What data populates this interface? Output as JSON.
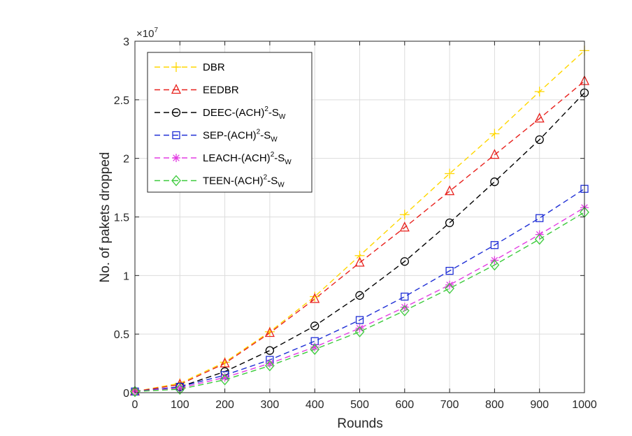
{
  "chart_data": {
    "type": "line",
    "title": "",
    "xlabel": "Rounds",
    "ylabel": "No. of pakets dropped",
    "xlim": [
      0,
      1000
    ],
    "ylim": [
      0,
      3
    ],
    "y_multiplier": {
      "base": "×10",
      "exponent": "7"
    },
    "x_ticks": [
      0,
      100,
      200,
      300,
      400,
      500,
      600,
      700,
      800,
      900,
      1000
    ],
    "y_ticks": [
      0,
      0.5,
      1,
      1.5,
      2,
      2.5,
      3
    ],
    "y_tick_labels": [
      "0",
      "0.5",
      "1",
      "1.5",
      "2",
      "2.5",
      "3"
    ],
    "grid": true,
    "legend_position": "top-left",
    "x": [
      0,
      100,
      200,
      300,
      400,
      500,
      600,
      700,
      800,
      900,
      1000
    ],
    "series": [
      {
        "name": "DBR",
        "label_main": "DBR",
        "label_sup": "",
        "label_sub": "",
        "color": "#FFD700",
        "marker": "plus",
        "values": [
          0.01,
          0.08,
          0.26,
          0.52,
          0.82,
          1.17,
          1.52,
          1.87,
          2.21,
          2.57,
          2.92
        ]
      },
      {
        "name": "EEDBR",
        "label_main": "EEDBR",
        "label_sup": "",
        "label_sub": "",
        "color": "#E8211D",
        "marker": "triangle",
        "values": [
          0.01,
          0.07,
          0.25,
          0.51,
          0.8,
          1.11,
          1.41,
          1.72,
          2.03,
          2.34,
          2.66
        ]
      },
      {
        "name": "DEEC-(ACH)2-SW",
        "label_main": "DEEC-(ACH)",
        "label_sup": "2",
        "label_sub": "W",
        "color": "#000000",
        "marker": "circle",
        "values": [
          0.01,
          0.05,
          0.18,
          0.36,
          0.57,
          0.83,
          1.12,
          1.45,
          1.8,
          2.16,
          2.56
        ]
      },
      {
        "name": "SEP-(ACH)2-SW",
        "label_main": "SEP-(ACH)",
        "label_sup": "2",
        "label_sub": "W",
        "color": "#1F2FD6",
        "marker": "square",
        "values": [
          0.01,
          0.05,
          0.15,
          0.28,
          0.44,
          0.62,
          0.82,
          1.04,
          1.26,
          1.49,
          1.74
        ]
      },
      {
        "name": "LEACH-(ACH)2-SW",
        "label_main": "LEACH-(ACH)",
        "label_sup": "2",
        "label_sub": "W",
        "color": "#E33BE3",
        "marker": "asterisk",
        "values": [
          0.01,
          0.04,
          0.13,
          0.25,
          0.39,
          0.55,
          0.73,
          0.92,
          1.13,
          1.35,
          1.58
        ]
      },
      {
        "name": "TEEN-(ACH)2-SW",
        "label_main": "TEEN-(ACH)",
        "label_sup": "2",
        "label_sub": "W",
        "color": "#3CCB3C",
        "marker": "diamond",
        "values": [
          0.01,
          0.03,
          0.11,
          0.23,
          0.37,
          0.52,
          0.7,
          0.89,
          1.09,
          1.31,
          1.54
        ]
      }
    ]
  }
}
